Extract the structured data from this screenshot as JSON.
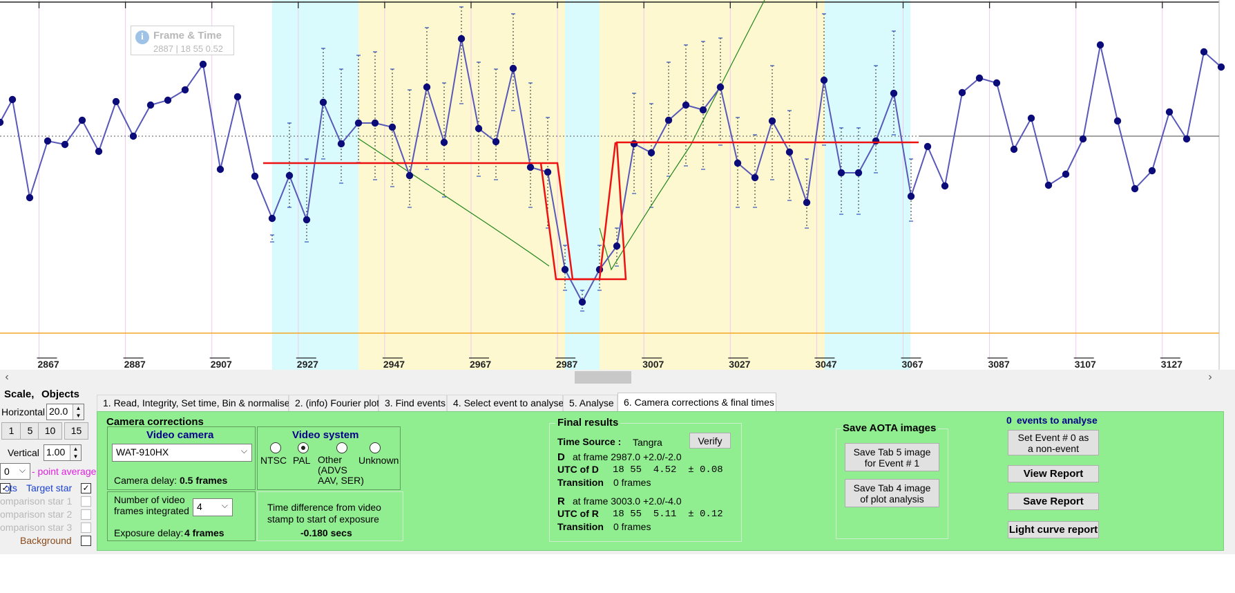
{
  "plot": {
    "tooltip": {
      "title": "Frame & Time",
      "value": "2887 | 18 55  0.52"
    },
    "x_ticks": [
      "2867",
      "2887",
      "2907",
      "2927",
      "2947",
      "2967",
      "2987",
      "3007",
      "3027",
      "3047",
      "3067",
      "3087",
      "3107",
      "3127"
    ],
    "colors": {
      "line": "#5858b8",
      "point": "#0b0b7a",
      "model": "#ee1111",
      "fit": "#22851f",
      "cyan_region": "#d9fbfd",
      "yellow_region": "#fdf8cf",
      "baseline": "#f5a623",
      "gridline": "#f1c9ef"
    }
  },
  "left": {
    "scale_label": "Scale,",
    "objects_label": "Objects",
    "horizontal_label": "Horizontal",
    "horizontal_value": "20.0",
    "scale_buttons": [
      "1",
      "5",
      "10",
      "15"
    ],
    "vertical_label": "Vertical",
    "vertical_value": "1.00",
    "point_avg_value": "0",
    "point_avg_label": "- point average",
    "pts_label": "ɔts",
    "target_star_label": "Target star",
    "comp1_label": "omparison star 1",
    "comp2_label": "omparison star 2",
    "comp3_label": "omparison star 3",
    "background_label": "Background"
  },
  "tabs": [
    "1.  Read, Integrity, Set time, Bin & normalise",
    "2. (info)  Fourier plot",
    "3. Find events",
    "4. Select event to analyse",
    "5. Analyse",
    "6. Camera corrections & final times"
  ],
  "camera": {
    "legend": "Camera corrections",
    "video_camera_title": "Video camera",
    "camera_model": "WAT-910HX",
    "camera_delay_label": "Camera delay:",
    "camera_delay_value": "0.5 frames",
    "video_system_title": "Video system",
    "radio_ntsc": "NTSC",
    "radio_pal": "PAL",
    "radio_other": "Other\n(ADVS\nAAV, SER)",
    "radio_unknown": "Unknown",
    "frames_label": "Number of video\nframes integrated",
    "frames_value": "4",
    "exposure_delay_label": "Exposure delay:",
    "exposure_delay_value": "4 frames",
    "time_diff_label": "Time difference from video\nstamp to start of exposure",
    "time_diff_value": "-0.180 secs"
  },
  "final": {
    "legend": "Final results",
    "time_source_label": "Time Source :",
    "time_source_value": "Tangra",
    "verify_label": "Verify",
    "d_label": "D",
    "d_frame": "at frame 2987.0  +2.0/-2.0",
    "utc_d_label": "UTC of D",
    "utc_d_value": "18 55  4.52  ± 0.08",
    "transition_label": "Transition",
    "d_transition_value": "0 frames",
    "r_label": "R",
    "r_frame": "at frame 3003.0  +2.0/-4.0",
    "utc_r_label": "UTC of R",
    "utc_r_value": "18 55  5.11  ± 0.12",
    "r_transition_value": "0 frames"
  },
  "aota": {
    "legend": "Save AOTA images",
    "save_tab5": "Save Tab 5 image\nfor Event # 1",
    "save_tab4": "Save Tab 4 image\nof plot analysis"
  },
  "report": {
    "events_count": "0",
    "events_label": "events to analyse",
    "set_event_label": "Set Event # 0 as\na non-event",
    "view_report": "View Report",
    "save_report": "Save Report",
    "light_curve_report": "Light curve report"
  }
}
